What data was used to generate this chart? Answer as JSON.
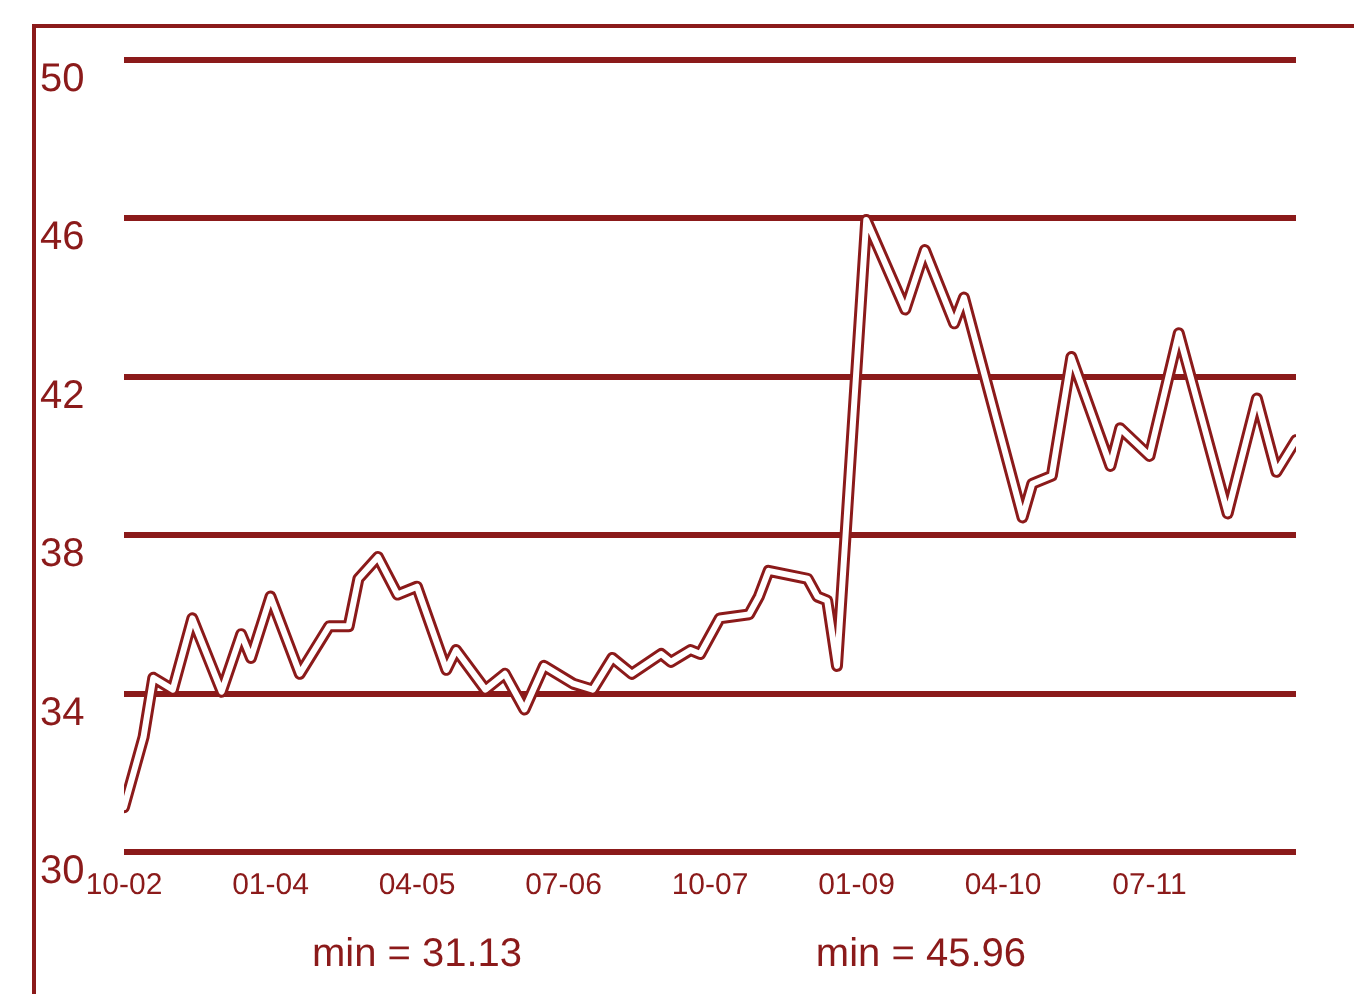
{
  "chart_data": {
    "type": "line",
    "x": [
      "2002-10",
      "2002-12",
      "2003-01",
      "2003-03",
      "2003-05",
      "2003-08",
      "2003-10",
      "2003-11",
      "2004-01",
      "2004-04",
      "2004-07",
      "2004-09",
      "2004-10",
      "2004-12",
      "2005-02",
      "2005-04",
      "2005-07",
      "2005-08",
      "2005-11",
      "2006-01",
      "2006-03",
      "2006-05",
      "2006-08",
      "2006-10",
      "2006-12",
      "2007-02",
      "2007-05",
      "2007-06",
      "2007-08",
      "2007-09",
      "2007-11",
      "2008-02",
      "2008-03",
      "2008-04",
      "2008-08",
      "2008-09",
      "2008-10",
      "2008-11",
      "2009-02",
      "2009-06",
      "2009-08",
      "2009-11",
      "2009-12",
      "2010-06",
      "2010-07",
      "2010-09",
      "2010-11",
      "2011-03",
      "2011-04",
      "2011-07",
      "2011-10",
      "2012-03",
      "2012-06",
      "2012-08",
      "2012-10"
    ],
    "series": [
      {
        "color": "#8b1a1a",
        "values": [
          31.13,
          32.9,
          34.4,
          34.1,
          35.9,
          34.05,
          35.5,
          34.9,
          36.45,
          34.5,
          35.7,
          35.7,
          36.9,
          37.45,
          36.5,
          36.7,
          34.6,
          35.1,
          34.1,
          34.5,
          33.6,
          34.7,
          34.25,
          34.1,
          34.9,
          34.5,
          35.0,
          34.8,
          35.1,
          35.0,
          35.9,
          36.0,
          36.45,
          37.1,
          36.9,
          36.45,
          36.35,
          34.7,
          45.96,
          43.7,
          45.2,
          43.35,
          44.0,
          38.45,
          39.3,
          39.5,
          42.5,
          39.75,
          40.7,
          40.0,
          43.1,
          38.55,
          41.45,
          39.6,
          40.4
        ]
      }
    ],
    "xlim": [
      "2002-10",
      "2012-10"
    ],
    "xticks": [
      {
        "value": "2002-10",
        "label": "10-02"
      },
      {
        "value": "2004-01",
        "label": "01-04"
      },
      {
        "value": "2005-04",
        "label": "04-05"
      },
      {
        "value": "2006-07",
        "label": "07-06"
      },
      {
        "value": "2007-10",
        "label": "10-07"
      },
      {
        "value": "2009-01",
        "label": "01-09"
      },
      {
        "value": "2010-04",
        "label": "04-10"
      },
      {
        "value": "2011-07",
        "label": "07-11"
      }
    ],
    "ylim": [
      30,
      50
    ],
    "yticks": [
      30,
      34,
      38,
      42,
      46,
      50
    ],
    "grid": "y",
    "legend": false,
    "marker": "none",
    "line_style": "solid",
    "annotations": [
      "min = 31.13",
      "min = 45.96"
    ]
  }
}
